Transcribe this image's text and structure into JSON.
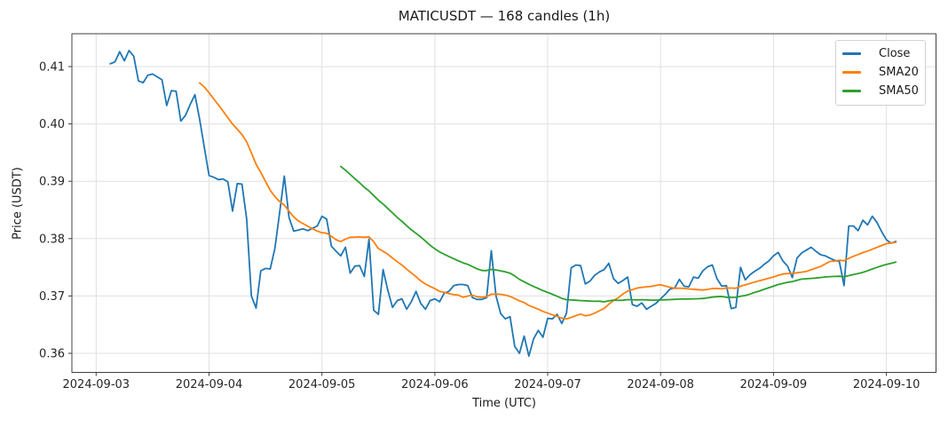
{
  "figure": {
    "title": "MATICUSDT — 168 candles (1h)",
    "xlabel": "Time (UTC)",
    "ylabel": "Price (USDT)"
  },
  "chart_data": {
    "type": "line",
    "title": "MATICUSDT — 168 candles (1h)",
    "xlabel": "Time (UTC)",
    "ylabel": "Price (USDT)",
    "grid": true,
    "legend_position": "upper right",
    "x_unit": "1 hour per candle",
    "x_start": "2024-09-03 03:00",
    "x_end": "2024-09-10 02:00",
    "n_points": 168,
    "ylim": [
      0.3567,
      0.4157
    ],
    "xlim_hours": [
      -8.2,
      175.6
    ],
    "x_ticks": [
      {
        "hour": -3,
        "label": "2024-09-03"
      },
      {
        "hour": 21,
        "label": "2024-09-04"
      },
      {
        "hour": 45,
        "label": "2024-09-05"
      },
      {
        "hour": 69,
        "label": "2024-09-06"
      },
      {
        "hour": 93,
        "label": "2024-09-07"
      },
      {
        "hour": 117,
        "label": "2024-09-08"
      },
      {
        "hour": 141,
        "label": "2024-09-09"
      },
      {
        "hour": 165,
        "label": "2024-09-10"
      }
    ],
    "y_ticks": [
      {
        "value": 0.36,
        "label": "0.36"
      },
      {
        "value": 0.37,
        "label": "0.37"
      },
      {
        "value": 0.38,
        "label": "0.38"
      },
      {
        "value": 0.39,
        "label": "0.39"
      },
      {
        "value": 0.4,
        "label": "0.40"
      },
      {
        "value": 0.41,
        "label": "0.41"
      }
    ],
    "series": [
      {
        "name": "Close",
        "color": "#1f77b4",
        "kind": "raw",
        "values": [
          0.4105,
          0.4108,
          0.4126,
          0.411,
          0.4128,
          0.4118,
          0.4075,
          0.4072,
          0.4085,
          0.4087,
          0.4082,
          0.4077,
          0.4032,
          0.4058,
          0.4057,
          0.4005,
          0.4015,
          0.4034,
          0.4051,
          0.4008,
          0.3959,
          0.391,
          0.3907,
          0.3903,
          0.3904,
          0.3899,
          0.3848,
          0.3896,
          0.3895,
          0.3834,
          0.37,
          0.3679,
          0.3744,
          0.3748,
          0.3747,
          0.3783,
          0.3845,
          0.3909,
          0.3837,
          0.3813,
          0.3815,
          0.3817,
          0.3814,
          0.3818,
          0.3822,
          0.3839,
          0.3834,
          0.3787,
          0.3778,
          0.377,
          0.3785,
          0.374,
          0.3752,
          0.3753,
          0.3734,
          0.3799,
          0.3675,
          0.3668,
          0.3746,
          0.371,
          0.368,
          0.3692,
          0.3695,
          0.3677,
          0.369,
          0.3708,
          0.3687,
          0.3677,
          0.3692,
          0.3695,
          0.369,
          0.3705,
          0.3708,
          0.3718,
          0.372,
          0.372,
          0.3718,
          0.3697,
          0.3694,
          0.3694,
          0.3697,
          0.3779,
          0.37,
          0.3669,
          0.366,
          0.3664,
          0.3612,
          0.36,
          0.363,
          0.3595,
          0.3625,
          0.364,
          0.3628,
          0.3661,
          0.366,
          0.3668,
          0.3652,
          0.367,
          0.3749,
          0.3754,
          0.3753,
          0.3721,
          0.3726,
          0.3736,
          0.3742,
          0.3746,
          0.3757,
          0.373,
          0.3722,
          0.3727,
          0.3733,
          0.3685,
          0.3682,
          0.3688,
          0.3677,
          0.3682,
          0.3687,
          0.3695,
          0.3703,
          0.3712,
          0.3714,
          0.3729,
          0.3717,
          0.3716,
          0.3733,
          0.3731,
          0.3744,
          0.3751,
          0.3754,
          0.373,
          0.3717,
          0.3718,
          0.3678,
          0.368,
          0.375,
          0.3728,
          0.3737,
          0.3743,
          0.3748,
          0.3755,
          0.3761,
          0.377,
          0.3776,
          0.3761,
          0.3752,
          0.3732,
          0.3766,
          0.3775,
          0.378,
          0.3785,
          0.3778,
          0.3772,
          0.377,
          0.3766,
          0.3762,
          0.376,
          0.3718,
          0.3822,
          0.3822,
          0.3814,
          0.3832,
          0.3824,
          0.3839,
          0.3828,
          0.3812,
          0.3798,
          0.3792,
          0.3795
        ]
      },
      {
        "name": "SMA20",
        "color": "#ff7f0e",
        "kind": "sma",
        "window": 20,
        "source": "Close"
      },
      {
        "name": "SMA50",
        "color": "#2ca02c",
        "kind": "sma",
        "window": 50,
        "source": "Close"
      }
    ]
  },
  "legend": {
    "items": [
      {
        "label": "Close",
        "color": "#1f77b4"
      },
      {
        "label": "SMA20",
        "color": "#ff7f0e"
      },
      {
        "label": "SMA50",
        "color": "#2ca02c"
      }
    ]
  },
  "style": {
    "grid_color": "#e0e0e0",
    "spine_color": "#404040",
    "tick_color": "#262626",
    "background": "#ffffff"
  }
}
